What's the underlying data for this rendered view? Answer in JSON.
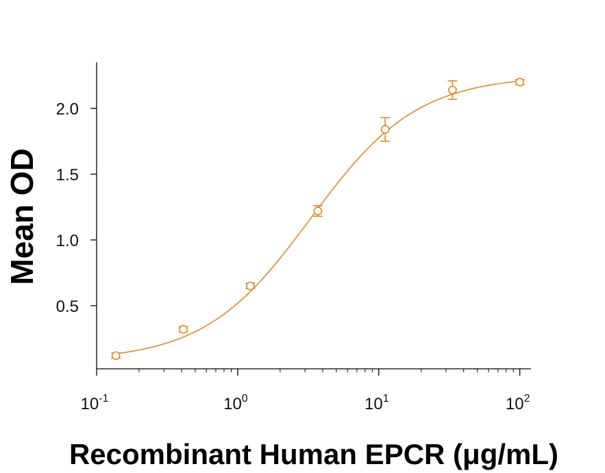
{
  "chart_data": {
    "type": "scatter",
    "title": "",
    "xlabel": "Recombinant Human EPCR (μg/mL)",
    "ylabel": "Mean OD",
    "x_scale": "log",
    "xlim": [
      0.1,
      120
    ],
    "ylim": [
      0.02,
      2.35
    ],
    "x_ticks": [
      {
        "value": 0.1,
        "base": "10",
        "exp": "-1"
      },
      {
        "value": 1,
        "base": "10",
        "exp": "0"
      },
      {
        "value": 10,
        "base": "10",
        "exp": "1"
      },
      {
        "value": 100,
        "base": "10",
        "exp": "2"
      }
    ],
    "y_ticks": [
      {
        "value": 0.5,
        "label": "0.5"
      },
      {
        "value": 1.0,
        "label": "1.0"
      },
      {
        "value": 1.5,
        "label": "1.5"
      },
      {
        "value": 2.0,
        "label": "2.0"
      }
    ],
    "grid": false,
    "color": "#E08A1E",
    "series": [
      {
        "x": [
          0.137,
          0.412,
          1.23,
          3.7,
          11.1,
          33.3,
          100
        ],
        "y": [
          0.12,
          0.32,
          0.65,
          1.22,
          1.84,
          2.14,
          2.2
        ],
        "error": [
          0.02,
          0.02,
          0.02,
          0.04,
          0.09,
          0.07,
          0.02
        ]
      }
    ],
    "fit_curve": {
      "model": "4PL",
      "bottom": 0.08,
      "top": 2.25,
      "ec50": 3.3,
      "hill": 1.15
    }
  }
}
